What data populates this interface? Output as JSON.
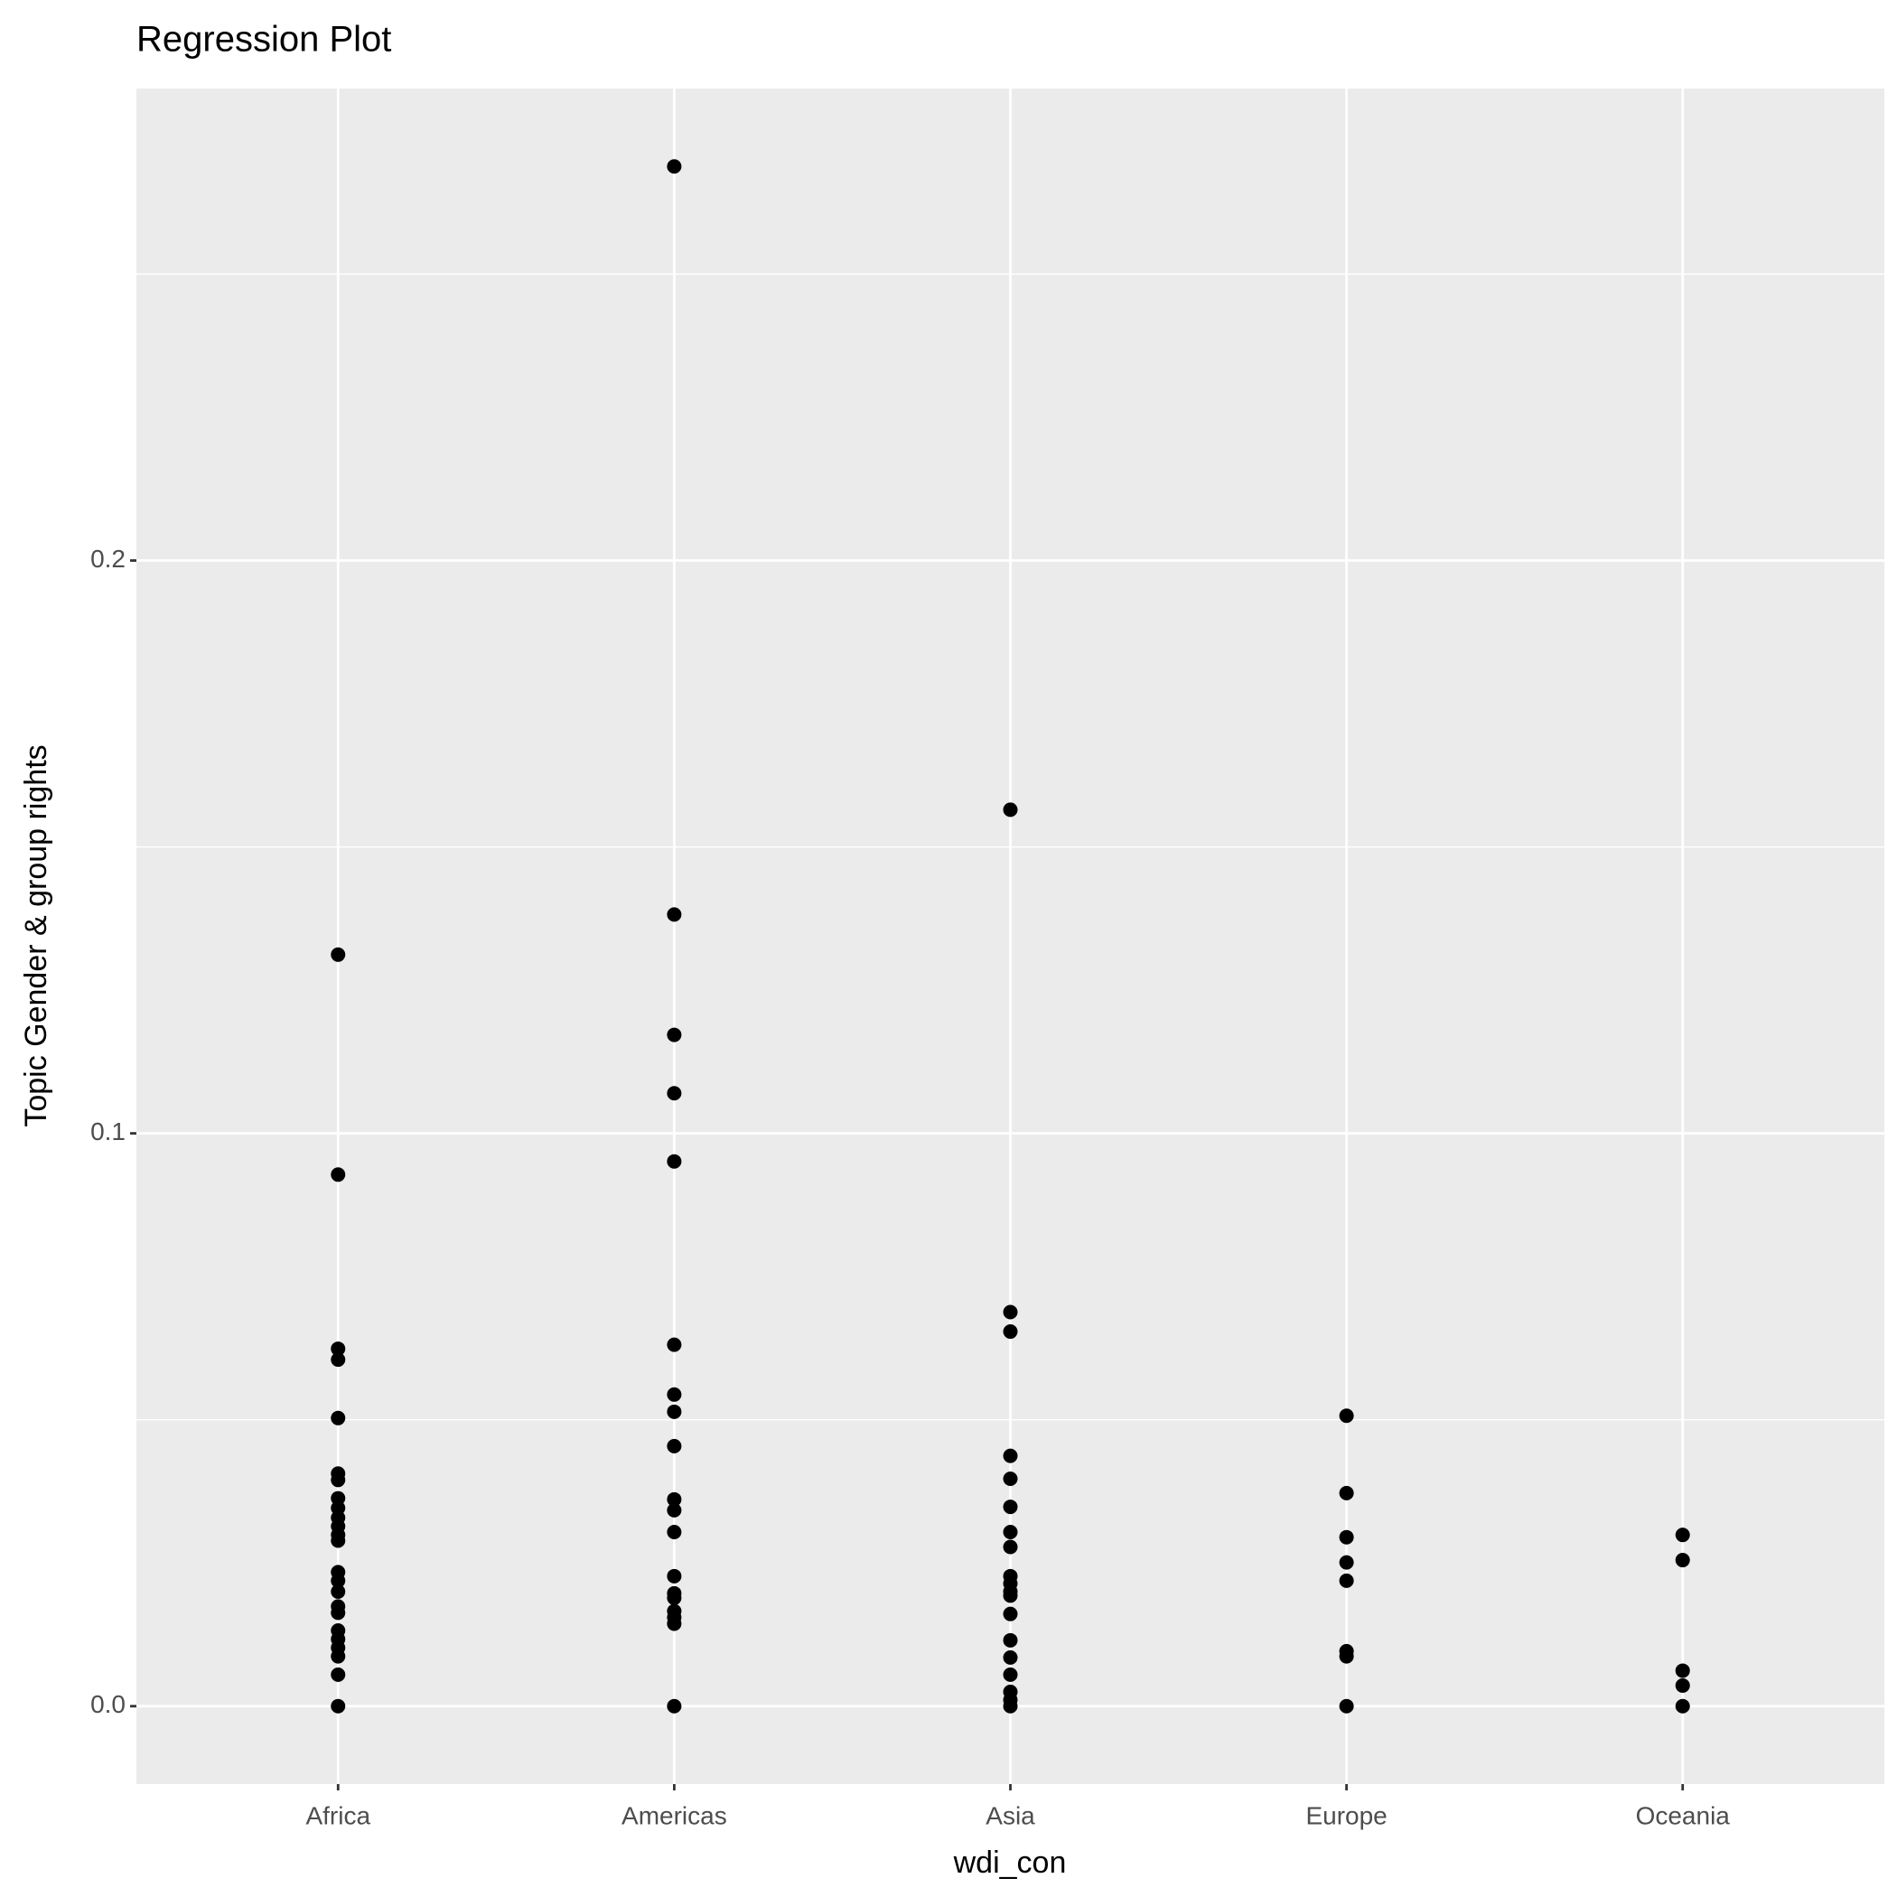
{
  "chart_data": {
    "type": "strip",
    "title": "Regression Plot",
    "x_label": "wdi_con",
    "y_label": "Topic Gender & group rights",
    "categories": [
      "Africa",
      "Americas",
      "Asia",
      "Europe",
      "Oceania"
    ],
    "values": [
      [
        0.1312,
        0.0928,
        0.0624,
        0.0605,
        0.0503,
        0.0406,
        0.0395,
        0.0363,
        0.0346,
        0.0329,
        0.0314,
        0.0299,
        0.0289,
        0.0234,
        0.0219,
        0.02,
        0.0174,
        0.0163,
        0.0132,
        0.0117,
        0.0102,
        0.0087,
        0.0055,
        0
      ],
      [
        0.2688,
        0.1382,
        0.1172,
        0.107,
        0.0951,
        0.0631,
        0.0544,
        0.0514,
        0.0454,
        0.0361,
        0.0342,
        0.0304,
        0.0227,
        0.0197,
        0.0189,
        0.0166,
        0.0155,
        0.0144,
        0
      ],
      [
        0.1565,
        0.0688,
        0.0654,
        0.0437,
        0.0397,
        0.0348,
        0.0304,
        0.0278,
        0.0227,
        0.0214,
        0.02,
        0.0193,
        0.0161,
        0.0115,
        0.0085,
        0.0055,
        0.0025,
        0.0011,
        0
      ],
      [
        0.0507,
        0.0372,
        0.0295,
        0.0251,
        0.0219,
        0.0096,
        0.0087,
        0
      ],
      [
        0.0299,
        0.0255,
        0.0062,
        0.0036,
        0
      ]
    ],
    "color": "#000000",
    "ylim": [
      -0.0136,
      0.2824
    ],
    "yticks": [
      {
        "value": 0,
        "label": "0.0"
      },
      0.1,
      0.2
    ],
    "minor_yticks": [
      0.05,
      0.15,
      0.25
    ],
    "grid": true
  }
}
